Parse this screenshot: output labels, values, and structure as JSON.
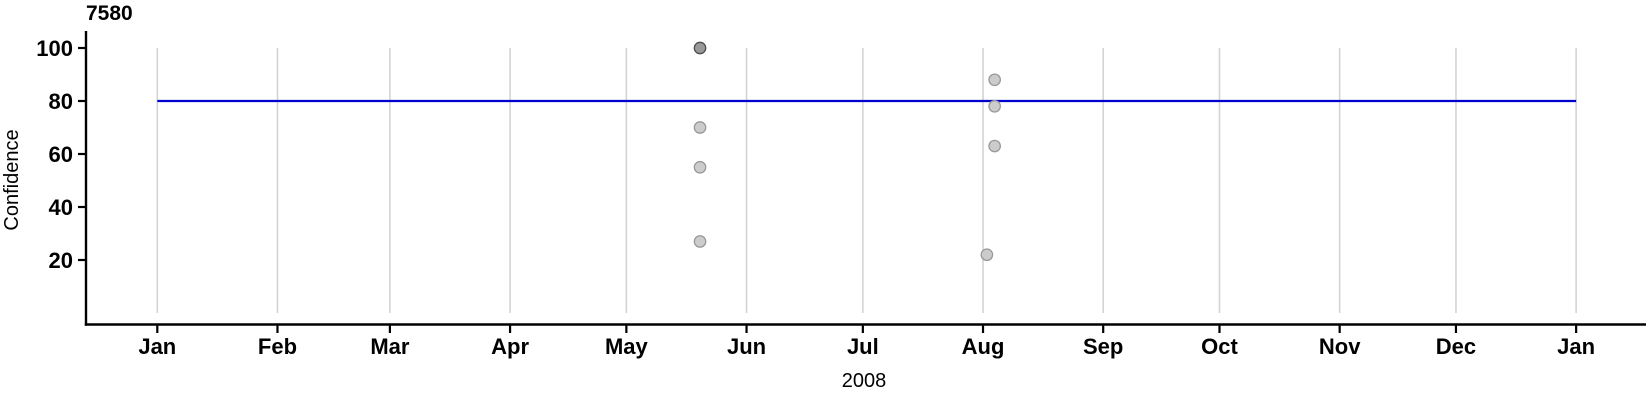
{
  "chart_data": {
    "type": "scatter",
    "title": "7580",
    "xlabel": "2008",
    "ylabel": "Confidence",
    "x_axis": {
      "year_label": "2008",
      "ticks": [
        {
          "date": "2008-01-01",
          "label": "Jan"
        },
        {
          "date": "2008-02-01",
          "label": "Feb"
        },
        {
          "date": "2008-03-01",
          "label": "Mar"
        },
        {
          "date": "2008-04-01",
          "label": "Apr"
        },
        {
          "date": "2008-05-01",
          "label": "May"
        },
        {
          "date": "2008-06-01",
          "label": "Jun"
        },
        {
          "date": "2008-07-01",
          "label": "Jul"
        },
        {
          "date": "2008-08-01",
          "label": "Aug"
        },
        {
          "date": "2008-09-01",
          "label": "Sep"
        },
        {
          "date": "2008-10-01",
          "label": "Oct"
        },
        {
          "date": "2008-11-01",
          "label": "Nov"
        },
        {
          "date": "2008-12-01",
          "label": "Dec"
        },
        {
          "date": "2009-01-01",
          "label": "Jan"
        }
      ]
    },
    "y_axis": {
      "ticks": [
        20,
        40,
        60,
        80,
        100
      ],
      "range": [
        0,
        100
      ]
    },
    "reference_line": {
      "value": 80,
      "x_start": "2008-01-01",
      "x_end": "2009-01-01",
      "color": "#0000cc"
    },
    "points": [
      {
        "date": "2008-05-20",
        "value": 100,
        "shade": "dark"
      },
      {
        "date": "2008-05-20",
        "value": 70,
        "shade": "light"
      },
      {
        "date": "2008-05-20",
        "value": 55,
        "shade": "light"
      },
      {
        "date": "2008-05-20",
        "value": 27,
        "shade": "light"
      },
      {
        "date": "2008-08-04",
        "value": 88,
        "shade": "light"
      },
      {
        "date": "2008-08-04",
        "value": 78,
        "shade": "light"
      },
      {
        "date": "2008-08-04",
        "value": 63,
        "shade": "light"
      },
      {
        "date": "2008-08-02",
        "value": 22,
        "shade": "light"
      }
    ],
    "grid": "vertical gridlines at each month, spanning y 0 to 100",
    "legend": "none",
    "colors": {
      "gridline": "#d4d4d4",
      "axis": "#000000",
      "point_fill": {
        "light": "#cccccc",
        "dark": "#999999"
      },
      "point_stroke": {
        "light": "#999999",
        "dark": "#4d4d4d"
      }
    }
  }
}
